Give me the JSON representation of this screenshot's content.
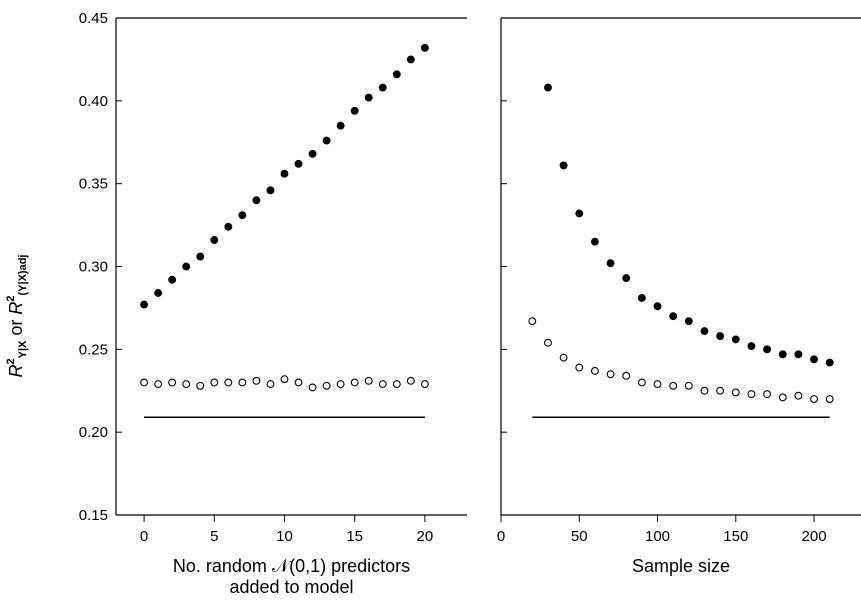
{
  "y_axis_label": {
    "parts": [
      {
        "text": "R",
        "style": "main",
        "baseline": 0
      },
      {
        "text": "2",
        "style": "sub",
        "baseline": -8
      },
      {
        "text": "Y|X",
        "style": "sub",
        "baseline": 4
      },
      {
        "text": " or ",
        "style": "plain",
        "baseline": 0
      },
      {
        "text": "R",
        "style": "main",
        "baseline": 0
      },
      {
        "text": "2",
        "style": "sub",
        "baseline": -8
      },
      {
        "text": "(Y|X)adj",
        "style": "sub",
        "baseline": 4
      }
    ]
  },
  "chart_data": [
    {
      "type": "scatter",
      "title": "",
      "xlabel": [
        "No. random 𝒩(0,1) predictors",
        "added to model"
      ],
      "ylabel": "R²Y|X or R²(Y|X)adj",
      "xlim": [
        -2,
        23
      ],
      "ylim": [
        0.15,
        0.45
      ],
      "xticks": [
        0,
        5,
        10,
        15,
        20
      ],
      "yticks": [
        0.15,
        0.2,
        0.25,
        0.3,
        0.35,
        0.4,
        0.45
      ],
      "ytick_labels": [
        "0.15",
        "0.20",
        "0.25",
        "0.30",
        "0.35",
        "0.40",
        "0.45"
      ],
      "series": [
        {
          "marker": "filled",
          "x": [
            0,
            1,
            2,
            3,
            4,
            5,
            6,
            7,
            8,
            9,
            10,
            11,
            12,
            13,
            14,
            15,
            16,
            17,
            18,
            19,
            20
          ],
          "y": [
            0.277,
            0.284,
            0.292,
            0.3,
            0.306,
            0.316,
            0.324,
            0.331,
            0.34,
            0.346,
            0.356,
            0.362,
            0.368,
            0.376,
            0.385,
            0.394,
            0.402,
            0.408,
            0.416,
            0.425,
            0.432
          ]
        },
        {
          "marker": "open",
          "x": [
            0,
            1,
            2,
            3,
            4,
            5,
            6,
            7,
            8,
            9,
            10,
            11,
            12,
            13,
            14,
            15,
            16,
            17,
            18,
            19,
            20
          ],
          "y": [
            0.23,
            0.229,
            0.23,
            0.229,
            0.228,
            0.23,
            0.23,
            0.23,
            0.231,
            0.229,
            0.232,
            0.23,
            0.227,
            0.228,
            0.229,
            0.23,
            0.231,
            0.229,
            0.229,
            0.231,
            0.229
          ]
        }
      ],
      "reference_line": {
        "x": [
          0,
          20
        ],
        "y": 0.209
      }
    },
    {
      "type": "scatter",
      "title": "",
      "xlabel": [
        "Sample size"
      ],
      "ylim": [
        0.15,
        0.45
      ],
      "xlim": [
        0,
        230
      ],
      "xticks": [
        0,
        50,
        100,
        150,
        200
      ],
      "yticks": [
        0.15,
        0.2,
        0.25,
        0.3,
        0.35,
        0.4,
        0.45
      ],
      "series": [
        {
          "marker": "filled",
          "x": [
            30,
            40,
            50,
            60,
            70,
            80,
            90,
            100,
            110,
            120,
            130,
            140,
            150,
            160,
            170,
            180,
            190,
            200,
            210
          ],
          "y": [
            0.408,
            0.361,
            0.332,
            0.315,
            0.302,
            0.293,
            0.281,
            0.276,
            0.27,
            0.267,
            0.261,
            0.258,
            0.256,
            0.252,
            0.25,
            0.247,
            0.247,
            0.244,
            0.242
          ]
        },
        {
          "marker": "open",
          "x": [
            20,
            30,
            40,
            50,
            60,
            70,
            80,
            90,
            100,
            110,
            120,
            130,
            140,
            150,
            160,
            170,
            180,
            190,
            200,
            210
          ],
          "y": [
            0.267,
            0.254,
            0.245,
            0.239,
            0.237,
            0.235,
            0.234,
            0.23,
            0.229,
            0.228,
            0.228,
            0.225,
            0.225,
            0.224,
            0.223,
            0.223,
            0.221,
            0.222,
            0.22,
            0.22
          ]
        }
      ],
      "reference_line": {
        "x": [
          20,
          210
        ],
        "y": 0.209
      }
    }
  ]
}
